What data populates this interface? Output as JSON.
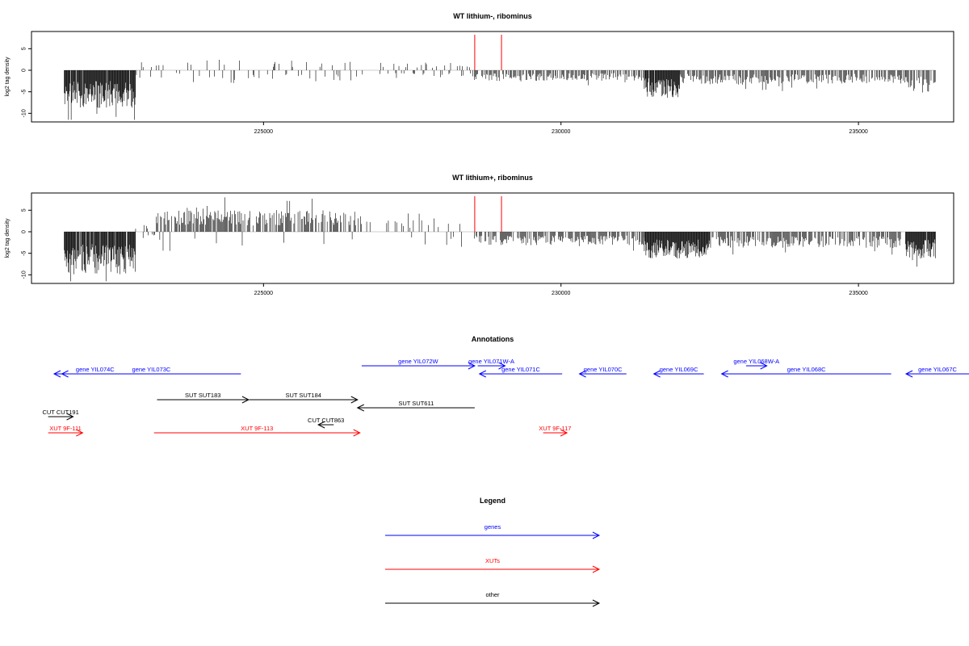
{
  "chart_data": [
    {
      "type": "bar",
      "title": "WT lithium-, ribominus",
      "ylabel": "log2 tag density",
      "xlim": [
        221100,
        236600
      ],
      "ylim": [
        -12,
        9
      ],
      "x_ticks": [
        225000,
        230000,
        235000
      ],
      "y_ticks": [
        5,
        0,
        -5,
        -10
      ],
      "grid": false,
      "markers": [
        {
          "x": 228550,
          "color": "#ff0000"
        },
        {
          "x": 229000,
          "color": "#ff0000"
        }
      ],
      "density_profile": [
        {
          "x0": 221650,
          "x1": 222850,
          "direction": "down",
          "level": 7
        },
        {
          "x0": 222850,
          "x1": 223600,
          "direction": "mixed",
          "level": 1.5
        },
        {
          "x0": 223600,
          "x1": 224800,
          "direction": "mixed",
          "level": 2.5
        },
        {
          "x0": 224800,
          "x1": 226800,
          "direction": "mixed",
          "level": 2
        },
        {
          "x0": 226800,
          "x1": 228500,
          "direction": "mixed",
          "level": 1.5
        },
        {
          "x0": 228500,
          "x1": 231400,
          "direction": "down",
          "level": 2
        },
        {
          "x0": 231400,
          "x1": 232000,
          "direction": "down",
          "level": 5
        },
        {
          "x0": 232000,
          "x1": 235800,
          "direction": "down",
          "level": 2.5
        },
        {
          "x0": 235800,
          "x1": 236300,
          "direction": "down",
          "level": 4
        }
      ]
    },
    {
      "type": "bar",
      "title": "WT lithium+, ribominus",
      "ylabel": "log2 tag density",
      "xlim": [
        221100,
        236600
      ],
      "ylim": [
        -12,
        9
      ],
      "x_ticks": [
        225000,
        230000,
        235000
      ],
      "y_ticks": [
        5,
        0,
        -5,
        -10
      ],
      "grid": false,
      "markers": [
        {
          "x": 228550,
          "color": "#ff0000"
        },
        {
          "x": 229000,
          "color": "#ff0000"
        }
      ],
      "density_profile": [
        {
          "x0": 221650,
          "x1": 222850,
          "direction": "down",
          "level": 8
        },
        {
          "x0": 222850,
          "x1": 223200,
          "direction": "mixed",
          "level": 1.5
        },
        {
          "x0": 223200,
          "x1": 226650,
          "direction": "up",
          "level": 4
        },
        {
          "x0": 226650,
          "x1": 228500,
          "direction": "mixed",
          "level": 2.5
        },
        {
          "x0": 228500,
          "x1": 231400,
          "direction": "down",
          "level": 2.5
        },
        {
          "x0": 231400,
          "x1": 232500,
          "direction": "down",
          "level": 5
        },
        {
          "x0": 232500,
          "x1": 235800,
          "direction": "down",
          "level": 3
        },
        {
          "x0": 235800,
          "x1": 236300,
          "direction": "down",
          "level": 5
        }
      ]
    }
  ],
  "annotations": {
    "title": "Annotations",
    "items": [
      {
        "label": "gene YIL074C",
        "start": 222860,
        "end": 221480,
        "kind": "gene",
        "row": 1
      },
      {
        "label": "gene YIL073C",
        "start": 224620,
        "end": 221610,
        "kind": "gene",
        "row": 1
      },
      {
        "label": "gene YIL072W",
        "start": 226650,
        "end": 228550,
        "kind": "gene",
        "row": 0
      },
      {
        "label": "gene YIL071W-A",
        "start": 228600,
        "end": 229060,
        "kind": "gene",
        "row": 0
      },
      {
        "label": "gene YIL071C",
        "start": 230020,
        "end": 228630,
        "kind": "gene",
        "row": 1
      },
      {
        "label": "gene YIL070C",
        "start": 231100,
        "end": 230310,
        "kind": "gene",
        "row": 1
      },
      {
        "label": "gene YIL069C",
        "start": 232400,
        "end": 231560,
        "kind": "gene",
        "row": 1
      },
      {
        "label": "gene YIL068W-A",
        "start": 233110,
        "end": 233460,
        "kind": "gene",
        "row": 0
      },
      {
        "label": "gene YIL068C",
        "start": 235550,
        "end": 232700,
        "kind": "gene",
        "row": 1
      },
      {
        "label": "gene YIL067C",
        "start": 237200,
        "end": 235800,
        "kind": "gene",
        "row": 1
      },
      {
        "label": "SUT SUT183",
        "start": 223210,
        "end": 224750,
        "kind": "other",
        "row": 2
      },
      {
        "label": "SUT SUT184",
        "start": 224760,
        "end": 226580,
        "kind": "other",
        "row": 2
      },
      {
        "label": "SUT SUT611",
        "start": 228550,
        "end": 226580,
        "kind": "other",
        "row": 3
      },
      {
        "label": "CUT CUT191",
        "start": 221380,
        "end": 221800,
        "kind": "other",
        "row": 4
      },
      {
        "label": "CUT CUT863",
        "start": 226180,
        "end": 225920,
        "kind": "other",
        "row": 5
      },
      {
        "label": "XUT 9F-111",
        "start": 221380,
        "end": 221960,
        "kind": "xut",
        "row": 6
      },
      {
        "label": "XUT 9F-113",
        "start": 223160,
        "end": 226620,
        "kind": "xut",
        "row": 6
      },
      {
        "label": "XUT 9F-117",
        "start": 229700,
        "end": 230100,
        "kind": "xut",
        "row": 6
      }
    ]
  },
  "legend": {
    "title": "Legend",
    "items": [
      {
        "label": "genes",
        "color": "#0000ff"
      },
      {
        "label": "XUTs",
        "color": "#ff0000"
      },
      {
        "label": "other",
        "color": "#000000"
      }
    ]
  },
  "colors": {
    "gene": "#0000ff",
    "xut": "#ff0000",
    "other": "#000000",
    "marker": "#ff0000"
  }
}
